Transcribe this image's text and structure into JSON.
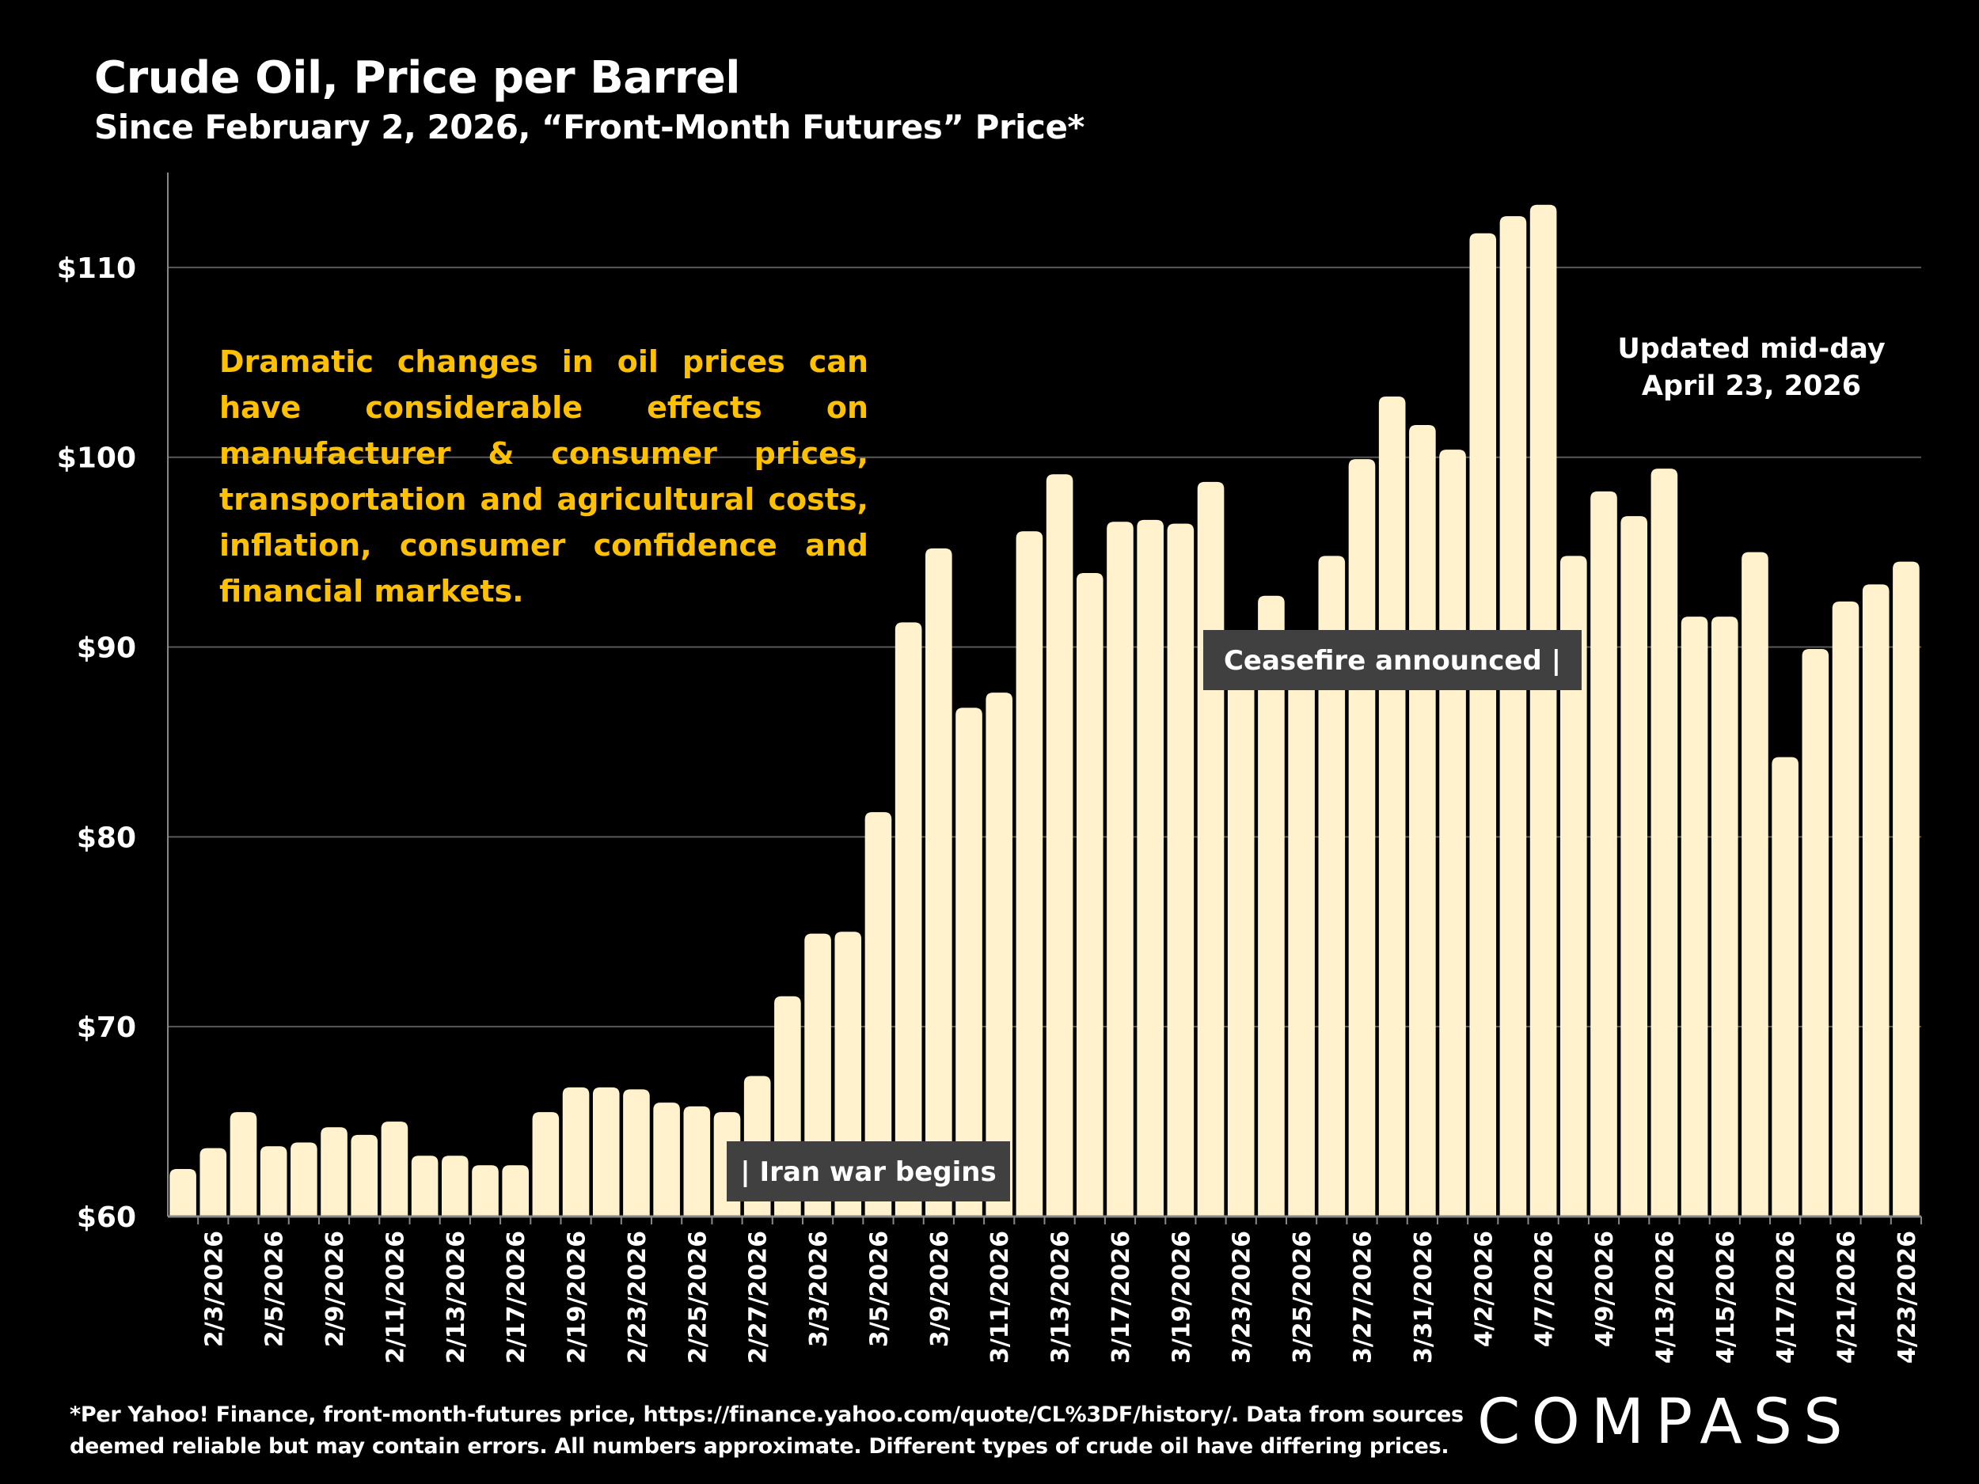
{
  "title": "Crude Oil, Price per Barrel",
  "subtitle": "Since February 2, 2026, “Front-Month Futures” Price*",
  "note": "Dramatic changes in oil prices can have considerable effects on manufacturer & consumer prices, transportation and agricultural costs, inflation, consumer confidence and financial markets.",
  "updated": [
    "Updated mid-day",
    "April 23, 2026"
  ],
  "footnote": [
    "*Per Yahoo! Finance, front-month-futures price, https://finance.yahoo.com/quote/CL%3DF/history/. Data from sources",
    "deemed reliable but may contain errors. All numbers approximate. Different types of crude oil have differing prices."
  ],
  "logo": "COMPASS",
  "colors": {
    "background": "#000000",
    "bar": "#FFF2CC",
    "note": "#FFC000",
    "callout_bg": "#404040",
    "grid": "#595959"
  },
  "chart_data": {
    "type": "bar",
    "title": "Crude Oil, Price per Barrel",
    "ylim": [
      60,
      115
    ],
    "yticks": [
      60,
      70,
      80,
      90,
      100,
      110
    ],
    "ytick_labels": [
      "$60",
      "$70",
      "$80",
      "$90",
      "$100",
      "$110"
    ],
    "grid": true,
    "categories": [
      "",
      "2/3/2026",
      "",
      "2/5/2026",
      "",
      "2/9/2026",
      "",
      "2/11/2026",
      "",
      "2/13/2026",
      "",
      "2/17/2026",
      "",
      "2/19/2026",
      "",
      "2/23/2026",
      "",
      "2/25/2026",
      "",
      "2/27/2026",
      "",
      "3/3/2026",
      "",
      "3/5/2026",
      "",
      "3/9/2026",
      "",
      "3/11/2026",
      "",
      "3/13/2026",
      "",
      "3/17/2026",
      "",
      "3/19/2026",
      "",
      "3/23/2026",
      "",
      "3/25/2026",
      "",
      "3/27/2026",
      "",
      "3/31/2026",
      "",
      "4/2/2026",
      "",
      "4/7/2026",
      "",
      "4/9/2026",
      "",
      "4/13/2026",
      "",
      "4/15/2026",
      "",
      "4/17/2026",
      "",
      "4/21/2026",
      "",
      "4/23/2026"
    ],
    "values": [
      62.5,
      63.6,
      65.5,
      63.7,
      63.9,
      64.7,
      64.3,
      65.0,
      63.2,
      63.2,
      62.7,
      62.7,
      65.5,
      66.8,
      66.8,
      66.7,
      66.0,
      65.8,
      65.5,
      67.4,
      71.6,
      74.9,
      75.0,
      81.3,
      91.3,
      95.2,
      86.8,
      87.6,
      96.1,
      99.1,
      93.9,
      96.6,
      96.7,
      96.5,
      98.7,
      90.2,
      92.7,
      89.5,
      94.8,
      99.9,
      103.2,
      101.7,
      100.4,
      111.8,
      112.7,
      113.3,
      94.8,
      98.2,
      96.9,
      99.4,
      91.6,
      91.6,
      95.0,
      84.2,
      89.9,
      92.4,
      93.3,
      94.5
    ],
    "annotations": [
      {
        "text": "| Iran war begins",
        "at": "2/27/2026"
      },
      {
        "text": "Ceasefire announced |",
        "at": "4/7/2026"
      }
    ]
  }
}
